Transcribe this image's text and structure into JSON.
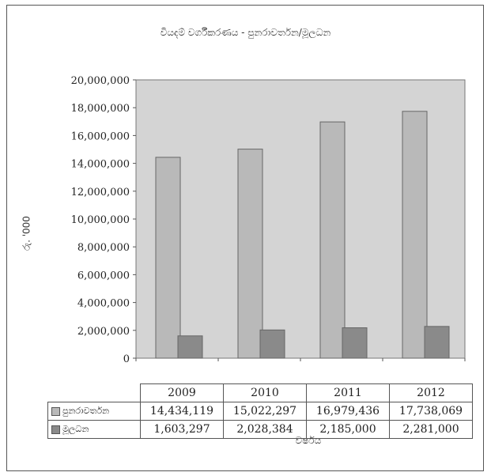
{
  "chart_data": {
    "type": "bar",
    "title": "වියදම් වර්ගීකරණය - පුනරාවර්තන/මූලධන",
    "xlabel": "වර්ෂය",
    "ylabel": "රු. '000",
    "categories": [
      "2009",
      "2010",
      "2011",
      "2012"
    ],
    "series": [
      {
        "name": "පුනරාවර්තන",
        "values": [
          14434119,
          15022297,
          16979436,
          17738069
        ],
        "value_labels": [
          "14,434,119",
          "15,022,297",
          "16,979,436",
          "17,738,069"
        ],
        "color": "#b9b9b9"
      },
      {
        "name": "මූලධන",
        "values": [
          1603297,
          2028384,
          2185000,
          2281000
        ],
        "value_labels": [
          "1,603,297",
          "2,028,384",
          "2,185,000",
          "2,281,000"
        ],
        "color": "#8a8a8a"
      }
    ],
    "ylim": [
      0,
      20000000
    ],
    "y_ticks": [
      0,
      2000000,
      4000000,
      6000000,
      8000000,
      10000000,
      12000000,
      14000000,
      16000000,
      18000000,
      20000000
    ],
    "y_tick_labels": [
      "0",
      "2,000,000",
      "4,000,000",
      "6,000,000",
      "8,000,000",
      "10,000,000",
      "12,000,000",
      "14,000,000",
      "16,000,000",
      "18,000,000",
      "20,000,000"
    ],
    "grid": false,
    "legend": "data-table",
    "plot_background": "#d4d4d4"
  }
}
